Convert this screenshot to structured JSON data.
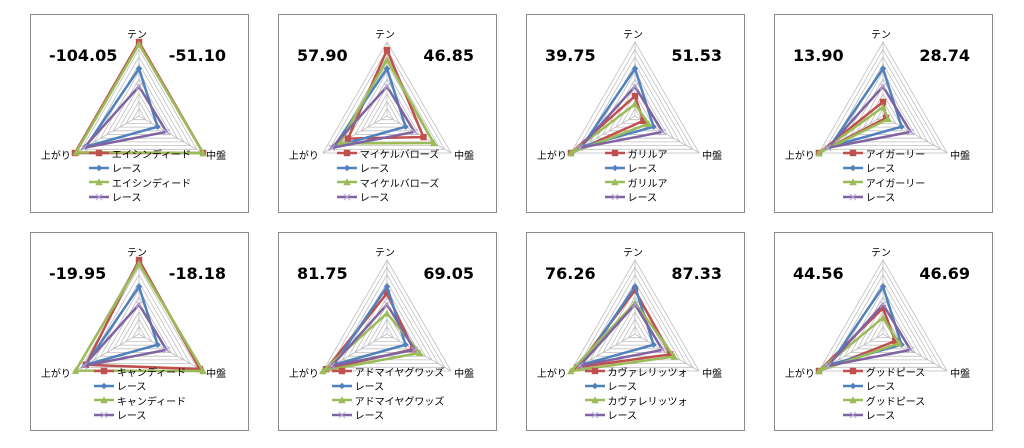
{
  "chart_data": [
    {
      "type": "radar",
      "axes": [
        "テン",
        "中盤",
        "上がり"
      ],
      "left_value": "-104.05",
      "right_value": "-51.10",
      "series": [
        {
          "name": "エイシンディード",
          "values": [
            10,
            10,
            10
          ]
        },
        {
          "name": "レース",
          "values": [
            6.4,
            2.9,
            8.3
          ]
        },
        {
          "name": "エイシンディード",
          "values": [
            9.7,
            10,
            9.8
          ]
        },
        {
          "name": "レース",
          "values": [
            4.0,
            4.3,
            8.6
          ]
        }
      ]
    },
    {
      "type": "radar",
      "axes": [
        "テン",
        "中盤",
        "上がり"
      ],
      "left_value": "57.90",
      "right_value": "46.85",
      "series": [
        {
          "name": "マイケルバローズ",
          "values": [
            8.9,
            5.7,
            6.1
          ]
        },
        {
          "name": "レース",
          "values": [
            6.4,
            2.9,
            8.3
          ]
        },
        {
          "name": "マイケルバローズ",
          "values": [
            7.6,
            7.3,
            7.4
          ]
        },
        {
          "name": "レース",
          "values": [
            4.0,
            4.3,
            8.6
          ]
        }
      ]
    },
    {
      "type": "radar",
      "axes": [
        "テン",
        "中盤",
        "上がり"
      ],
      "left_value": "39.75",
      "right_value": "51.53",
      "series": [
        {
          "name": "ガリルア",
          "values": [
            2.7,
            1.3,
            10
          ]
        },
        {
          "name": "レース",
          "values": [
            6.4,
            2.9,
            8.3
          ]
        },
        {
          "name": "ガリルア",
          "values": [
            1.6,
            2.1,
            10
          ]
        },
        {
          "name": "レース",
          "values": [
            4.0,
            4.3,
            8.6
          ]
        }
      ]
    },
    {
      "type": "radar",
      "axes": [
        "テン",
        "中盤",
        "上がり"
      ],
      "left_value": "13.90",
      "right_value": "28.74",
      "series": [
        {
          "name": "アイガーリー",
          "values": [
            1.9,
            0.5,
            10
          ]
        },
        {
          "name": "レース",
          "values": [
            6.4,
            2.9,
            8.3
          ]
        },
        {
          "name": "アイガーリー",
          "values": [
            1.2,
            0.8,
            10
          ]
        },
        {
          "name": "レース",
          "values": [
            4.0,
            4.3,
            8.6
          ]
        }
      ]
    },
    {
      "type": "radar",
      "axes": [
        "テン",
        "中盤",
        "上がり"
      ],
      "left_value": "-19.95",
      "right_value": "-18.18",
      "series": [
        {
          "name": "キャンディード",
          "values": [
            10,
            9.5,
            8.3
          ]
        },
        {
          "name": "レース",
          "values": [
            6.4,
            2.9,
            8.3
          ]
        },
        {
          "name": "キャンディード",
          "values": [
            9.5,
            10,
            9.9
          ]
        },
        {
          "name": "レース",
          "values": [
            4.0,
            4.3,
            8.6
          ]
        }
      ]
    },
    {
      "type": "radar",
      "axes": [
        "テン",
        "中盤",
        "上がり"
      ],
      "left_value": "81.75",
      "right_value": "69.05",
      "series": [
        {
          "name": "アドマイヤグワッズ",
          "values": [
            5.5,
            4.1,
            9.5
          ]
        },
        {
          "name": "レース",
          "values": [
            6.4,
            2.9,
            8.3
          ]
        },
        {
          "name": "アドマイヤグワッズ",
          "values": [
            2.8,
            5.1,
            10
          ]
        },
        {
          "name": "レース",
          "values": [
            4.0,
            4.3,
            8.6
          ]
        }
      ]
    },
    {
      "type": "radar",
      "axes": [
        "テン",
        "中盤",
        "上がり"
      ],
      "left_value": "76.26",
      "right_value": "87.33",
      "series": [
        {
          "name": "カヴァレリッツォ",
          "values": [
            5.9,
            5.5,
            9.0
          ]
        },
        {
          "name": "レース",
          "values": [
            6.4,
            2.9,
            8.3
          ]
        },
        {
          "name": "カヴァレリッツォ",
          "values": [
            4.2,
            6.1,
            10
          ]
        },
        {
          "name": "レース",
          "values": [
            4.0,
            4.3,
            8.6
          ]
        }
      ]
    },
    {
      "type": "radar",
      "axes": [
        "テン",
        "中盤",
        "上がり"
      ],
      "left_value": "44.56",
      "right_value": "46.69",
      "series": [
        {
          "name": "グッドピース",
          "values": [
            3.5,
            1.9,
            10
          ]
        },
        {
          "name": "レース",
          "values": [
            6.4,
            2.9,
            8.3
          ]
        },
        {
          "name": "グッドピース",
          "values": [
            2.2,
            2.5,
            10
          ]
        },
        {
          "name": "レース",
          "values": [
            4.0,
            4.3,
            8.6
          ]
        }
      ]
    }
  ],
  "scale_max": 10,
  "grid_rings": 10,
  "series_colors": [
    "#c0504d",
    "#4f81bd",
    "#9bbb59",
    "#8064a2"
  ],
  "series_markers": [
    "square",
    "diamond",
    "triangle",
    "x"
  ],
  "legend_position": "bottom"
}
